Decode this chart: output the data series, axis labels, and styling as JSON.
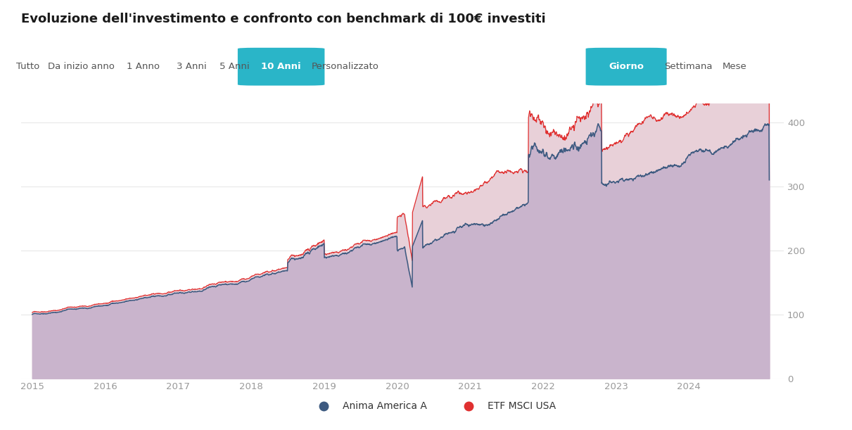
{
  "title": "Evoluzione dell'investimento e confronto con benchmark di 100€ investiti",
  "buttons": [
    "Tutto",
    "Da inizio anno",
    "1 Anno",
    "3 Anni",
    "5 Anni",
    "10 Anni",
    "Personalizzato"
  ],
  "active_button": "10 Anni",
  "right_buttons": [
    "Giorno",
    "Settimana",
    "Mese"
  ],
  "active_right_button": "Giorno",
  "legend": [
    "Anima America A",
    "ETF MSCI USA"
  ],
  "line1_color": "#3d5a80",
  "line2_color": "#e03030",
  "fill_etf_color": "#e8d0d8",
  "fill_anima_color": "#c9b4cc",
  "background_color": "#ffffff",
  "yticks": [
    0,
    100,
    200,
    300,
    400
  ],
  "xtick_years": [
    2015,
    2016,
    2017,
    2018,
    2019,
    2020,
    2021,
    2022,
    2023,
    2024
  ],
  "ylim": [
    0,
    430
  ],
  "xlim_start": 2014.85,
  "xlim_end": 2025.3,
  "grid_color": "#e8e8e8",
  "button_bar_bg": "#f0f0f0",
  "active_btn_bg": "#2ab5c8",
  "active_btn_text": "#ffffff",
  "inactive_btn_text": "#555555",
  "inactive_btn_color": "#c08030"
}
